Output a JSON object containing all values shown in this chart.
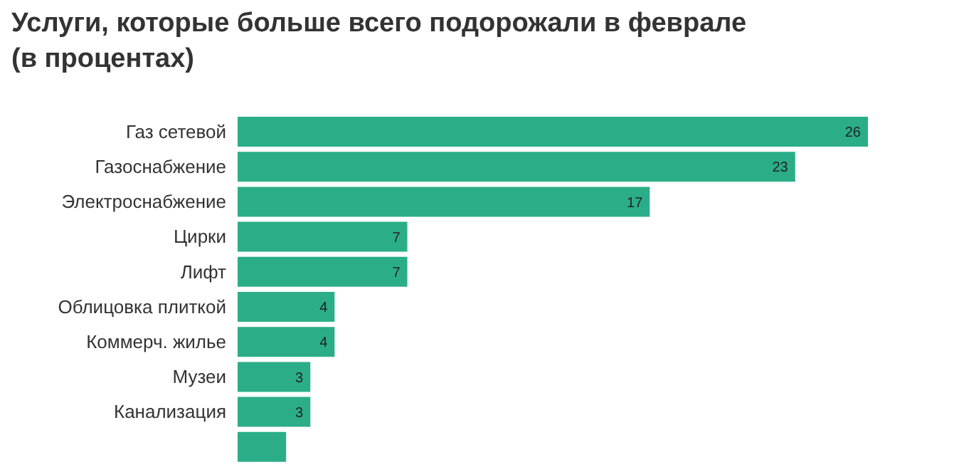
{
  "chart_data": {
    "type": "bar",
    "orientation": "horizontal",
    "title": "Услуги, которые больше всего подорожали в феврале (в процентах)",
    "categories": [
      "Газ сетевой",
      "Газоснабжение",
      "Электроснабжение",
      "Цирки",
      "Лифт",
      "Облицовка плиткой",
      "Коммерч. жилье",
      "Музеи",
      "Канализация",
      null
    ],
    "values": [
      26,
      23,
      17,
      7,
      7,
      4,
      4,
      3,
      3,
      2
    ],
    "value_labels": [
      "26",
      "23",
      "17",
      "7",
      "7",
      "4",
      "4",
      "3",
      "3",
      null
    ],
    "color": "#2bae88"
  }
}
